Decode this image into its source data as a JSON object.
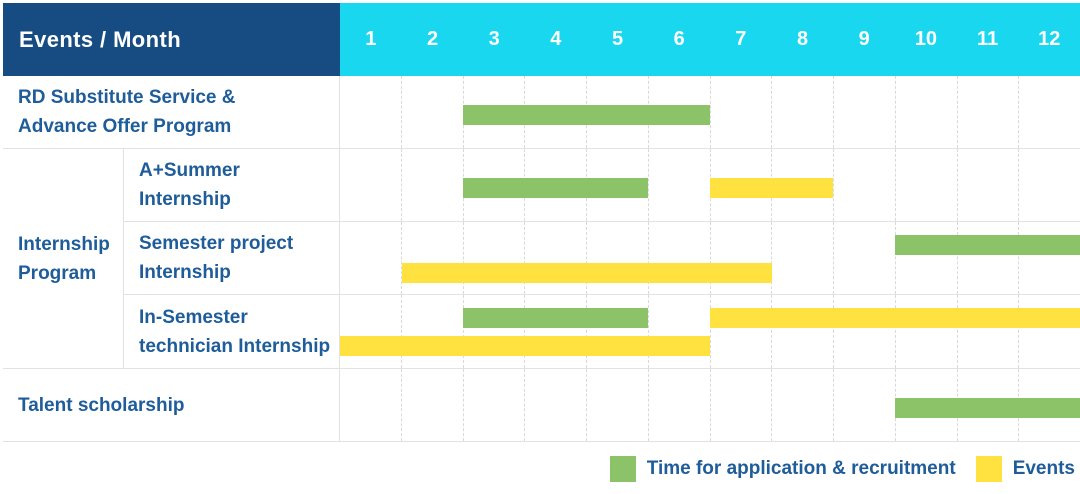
{
  "header": {
    "title": "Events / Month",
    "months": [
      "1",
      "2",
      "3",
      "4",
      "5",
      "6",
      "7",
      "8",
      "9",
      "10",
      "11",
      "12"
    ]
  },
  "colors": {
    "header_bg": "#174c82",
    "months_bg": "#18d7ee",
    "label_text": "#1e5c9a",
    "green": "#8cc368",
    "yellow": "#ffe23f"
  },
  "rows": [
    {
      "type": "simple",
      "id": "rd-substitute",
      "label_lines": [
        "RD Substitute Service &",
        "Advance Offer Program"
      ],
      "bars": [
        {
          "color": "green",
          "start": 3,
          "end": 7,
          "lane": "center"
        }
      ]
    },
    {
      "type": "group",
      "id": "internship-program",
      "label_lines": [
        "Internship",
        "Program"
      ],
      "children": [
        {
          "id": "a-plus-summer",
          "label_lines": [
            "A+Summer",
            "Internship"
          ],
          "bars": [
            {
              "color": "green",
              "start": 3,
              "end": 6,
              "lane": "center"
            },
            {
              "color": "yellow",
              "start": 7,
              "end": 9,
              "lane": "center"
            }
          ]
        },
        {
          "id": "semester-project",
          "label_lines": [
            "Semester project",
            "Internship"
          ],
          "bars": [
            {
              "color": "green",
              "start": 10,
              "end": 13,
              "lane": "upper"
            },
            {
              "color": "yellow",
              "start": 2,
              "end": 8,
              "lane": "lower"
            }
          ]
        },
        {
          "id": "in-semester-technician",
          "label_lines": [
            "In-Semester",
            "technician Internship"
          ],
          "bars": [
            {
              "color": "green",
              "start": 3,
              "end": 6,
              "lane": "upper"
            },
            {
              "color": "yellow",
              "start": 7,
              "end": 13,
              "lane": "upper"
            },
            {
              "color": "yellow",
              "start": 1,
              "end": 7,
              "lane": "lower"
            }
          ]
        }
      ]
    },
    {
      "type": "simple",
      "id": "talent-scholarship",
      "label_lines": [
        "Talent scholarship"
      ],
      "bars": [
        {
          "color": "green",
          "start": 10,
          "end": 13,
          "lane": "center"
        }
      ]
    }
  ],
  "legend": [
    {
      "color": "green",
      "label": "Time for application & recruitment"
    },
    {
      "color": "yellow",
      "label": "Events"
    }
  ],
  "chart_data": {
    "type": "bar",
    "subtype": "gantt",
    "title": "Events / Month",
    "xlabel": "Month",
    "x_ticks": [
      1,
      2,
      3,
      4,
      5,
      6,
      7,
      8,
      9,
      10,
      11,
      12
    ],
    "xlim": [
      1,
      12
    ],
    "grid": "vertical-dashed",
    "legend_position": "bottom-right",
    "series_legend": [
      "Time for application & recruitment",
      "Events"
    ],
    "rows": [
      {
        "category": "RD Substitute Service & Advance Offer Program",
        "spans": [
          {
            "series": "Time for application & recruitment",
            "start_month": 3,
            "end_month": 6
          }
        ]
      },
      {
        "category": "Internship Program - A+Summer Internship",
        "spans": [
          {
            "series": "Time for application & recruitment",
            "start_month": 3,
            "end_month": 5
          },
          {
            "series": "Events",
            "start_month": 7,
            "end_month": 8
          }
        ]
      },
      {
        "category": "Internship Program - Semester project Internship",
        "spans": [
          {
            "series": "Time for application & recruitment",
            "start_month": 10,
            "end_month": 12
          },
          {
            "series": "Events",
            "start_month": 2,
            "end_month": 7
          }
        ]
      },
      {
        "category": "Internship Program - In-Semester technician Internship",
        "spans": [
          {
            "series": "Time for application & recruitment",
            "start_month": 3,
            "end_month": 5
          },
          {
            "series": "Events",
            "start_month": 1,
            "end_month": 6
          },
          {
            "series": "Events",
            "start_month": 7,
            "end_month": 12
          }
        ]
      },
      {
        "category": "Talent scholarship",
        "spans": [
          {
            "series": "Time for application & recruitment",
            "start_month": 10,
            "end_month": 12
          }
        ]
      }
    ]
  }
}
